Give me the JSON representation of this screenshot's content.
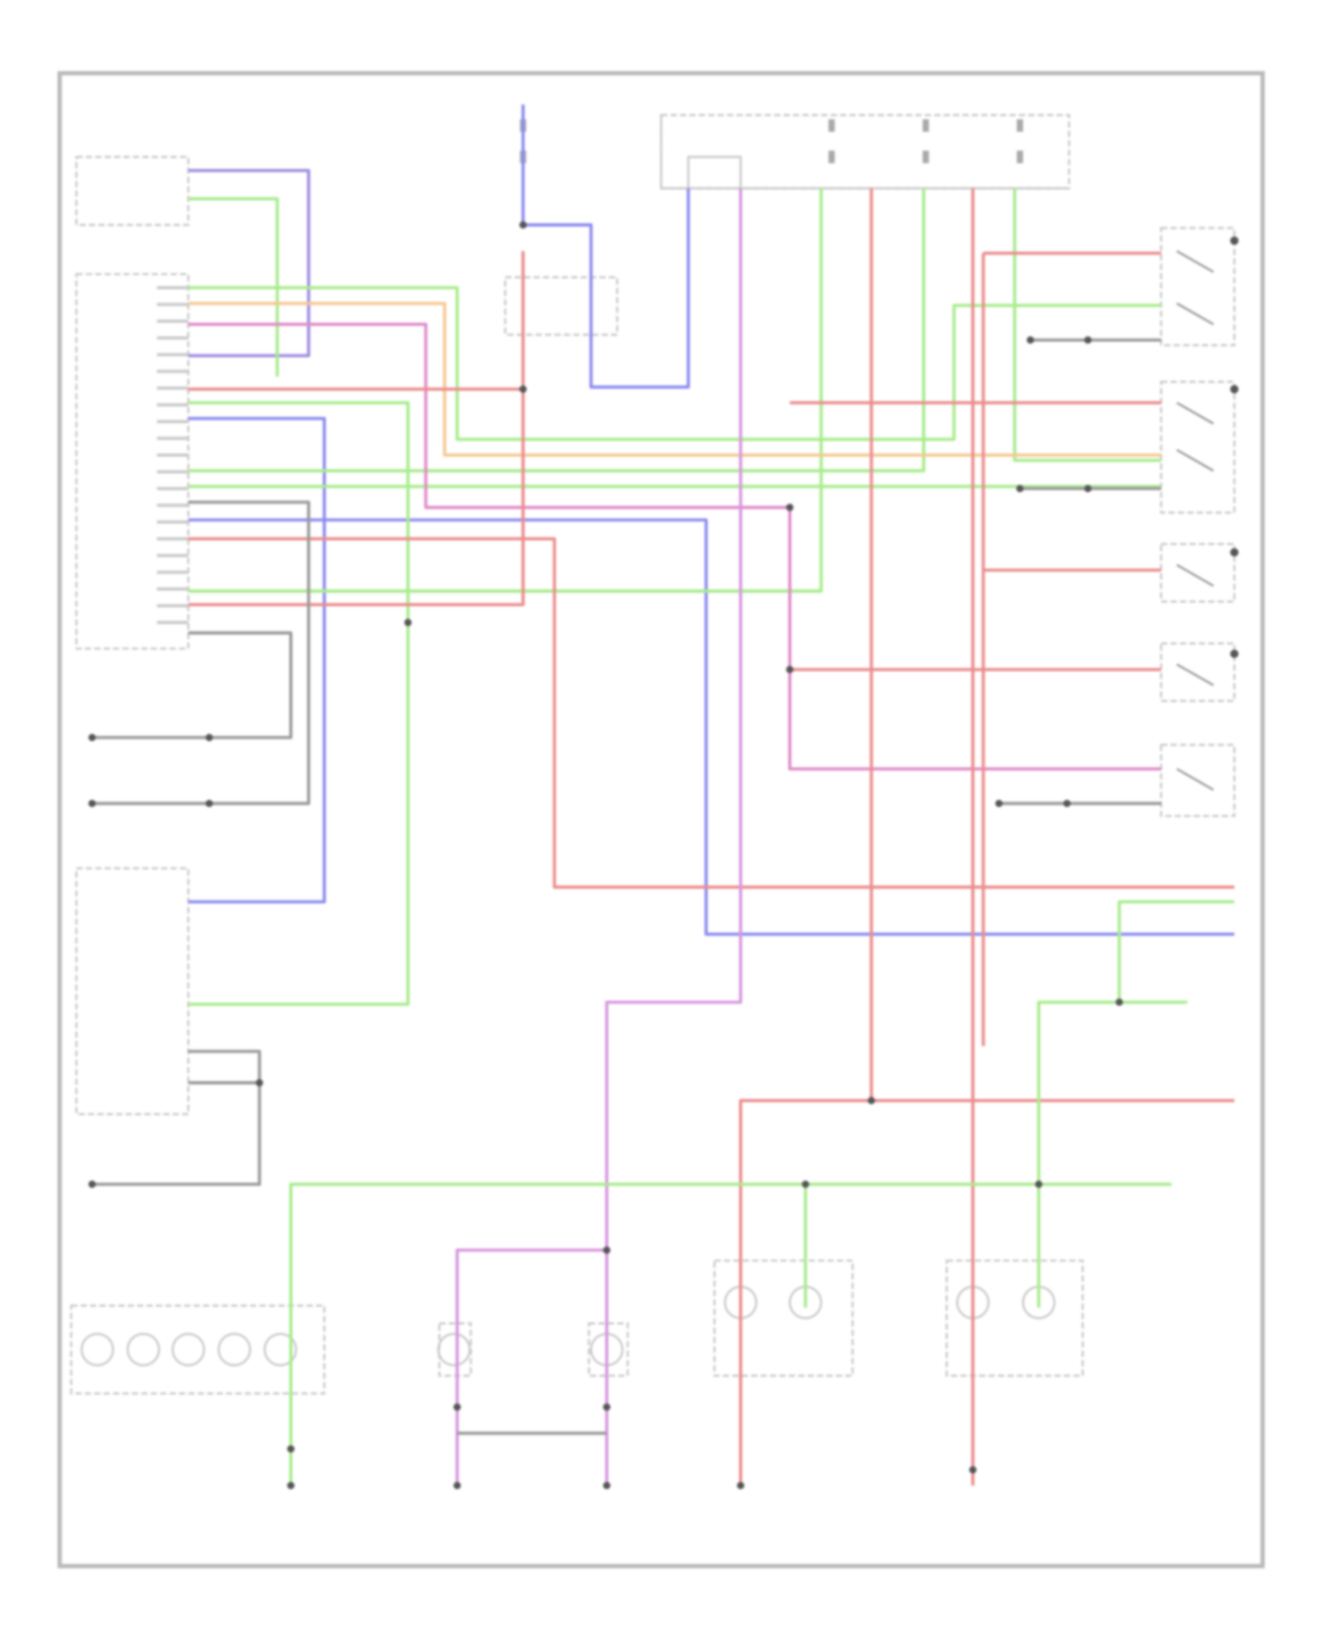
{
  "diagram": {
    "type": "wiring-schematic",
    "text_legible": false,
    "colors": {
      "frame": "#b9b9b9",
      "component": "#c8c8c8",
      "wire_gray": "#9a9a9a",
      "wire_blue": "#8c8cf0",
      "wire_purple": "#a08ce0",
      "wire_green": "#a8ec8c",
      "wire_orange": "#f5c890",
      "wire_pink": "#e08cc8",
      "wire_red": "#ec8c8c",
      "wire_magenta": "#d898e0",
      "background": "#ffffff"
    }
  }
}
